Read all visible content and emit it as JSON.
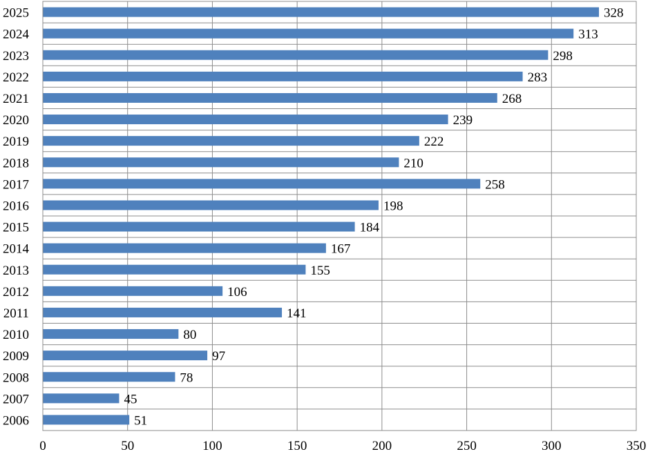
{
  "chart_data": {
    "type": "bar",
    "orientation": "horizontal",
    "title": "",
    "xlabel": "",
    "ylabel": "",
    "categories": [
      "2025",
      "2024",
      "2023",
      "2022",
      "2021",
      "2020",
      "2019",
      "2018",
      "2017",
      "2016",
      "2015",
      "2014",
      "2013",
      "2012",
      "2011",
      "2010",
      "2009",
      "2008",
      "2007",
      "2006"
    ],
    "values": [
      328,
      313,
      298,
      283,
      268,
      239,
      222,
      210,
      258,
      198,
      184,
      167,
      155,
      106,
      141,
      80,
      97,
      78,
      45,
      51
    ],
    "value_labels": [
      "328",
      "313",
      "298",
      "283",
      "268",
      "239",
      "222",
      "210",
      "258",
      "198",
      "184",
      "167",
      "155",
      "106",
      "141",
      "80",
      "97",
      "78",
      "45",
      "51"
    ],
    "xlim": [
      0,
      350
    ],
    "x_ticks": [
      0,
      50,
      100,
      150,
      200,
      250,
      300,
      350
    ],
    "x_tick_labels": [
      "0",
      "50",
      "100",
      "150",
      "200",
      "250",
      "300",
      "350"
    ],
    "grid": true,
    "legend": "none",
    "bar_color": "#4f81bd",
    "grid_color": "#8c8c8c",
    "border_color": "#8c8c8c"
  }
}
